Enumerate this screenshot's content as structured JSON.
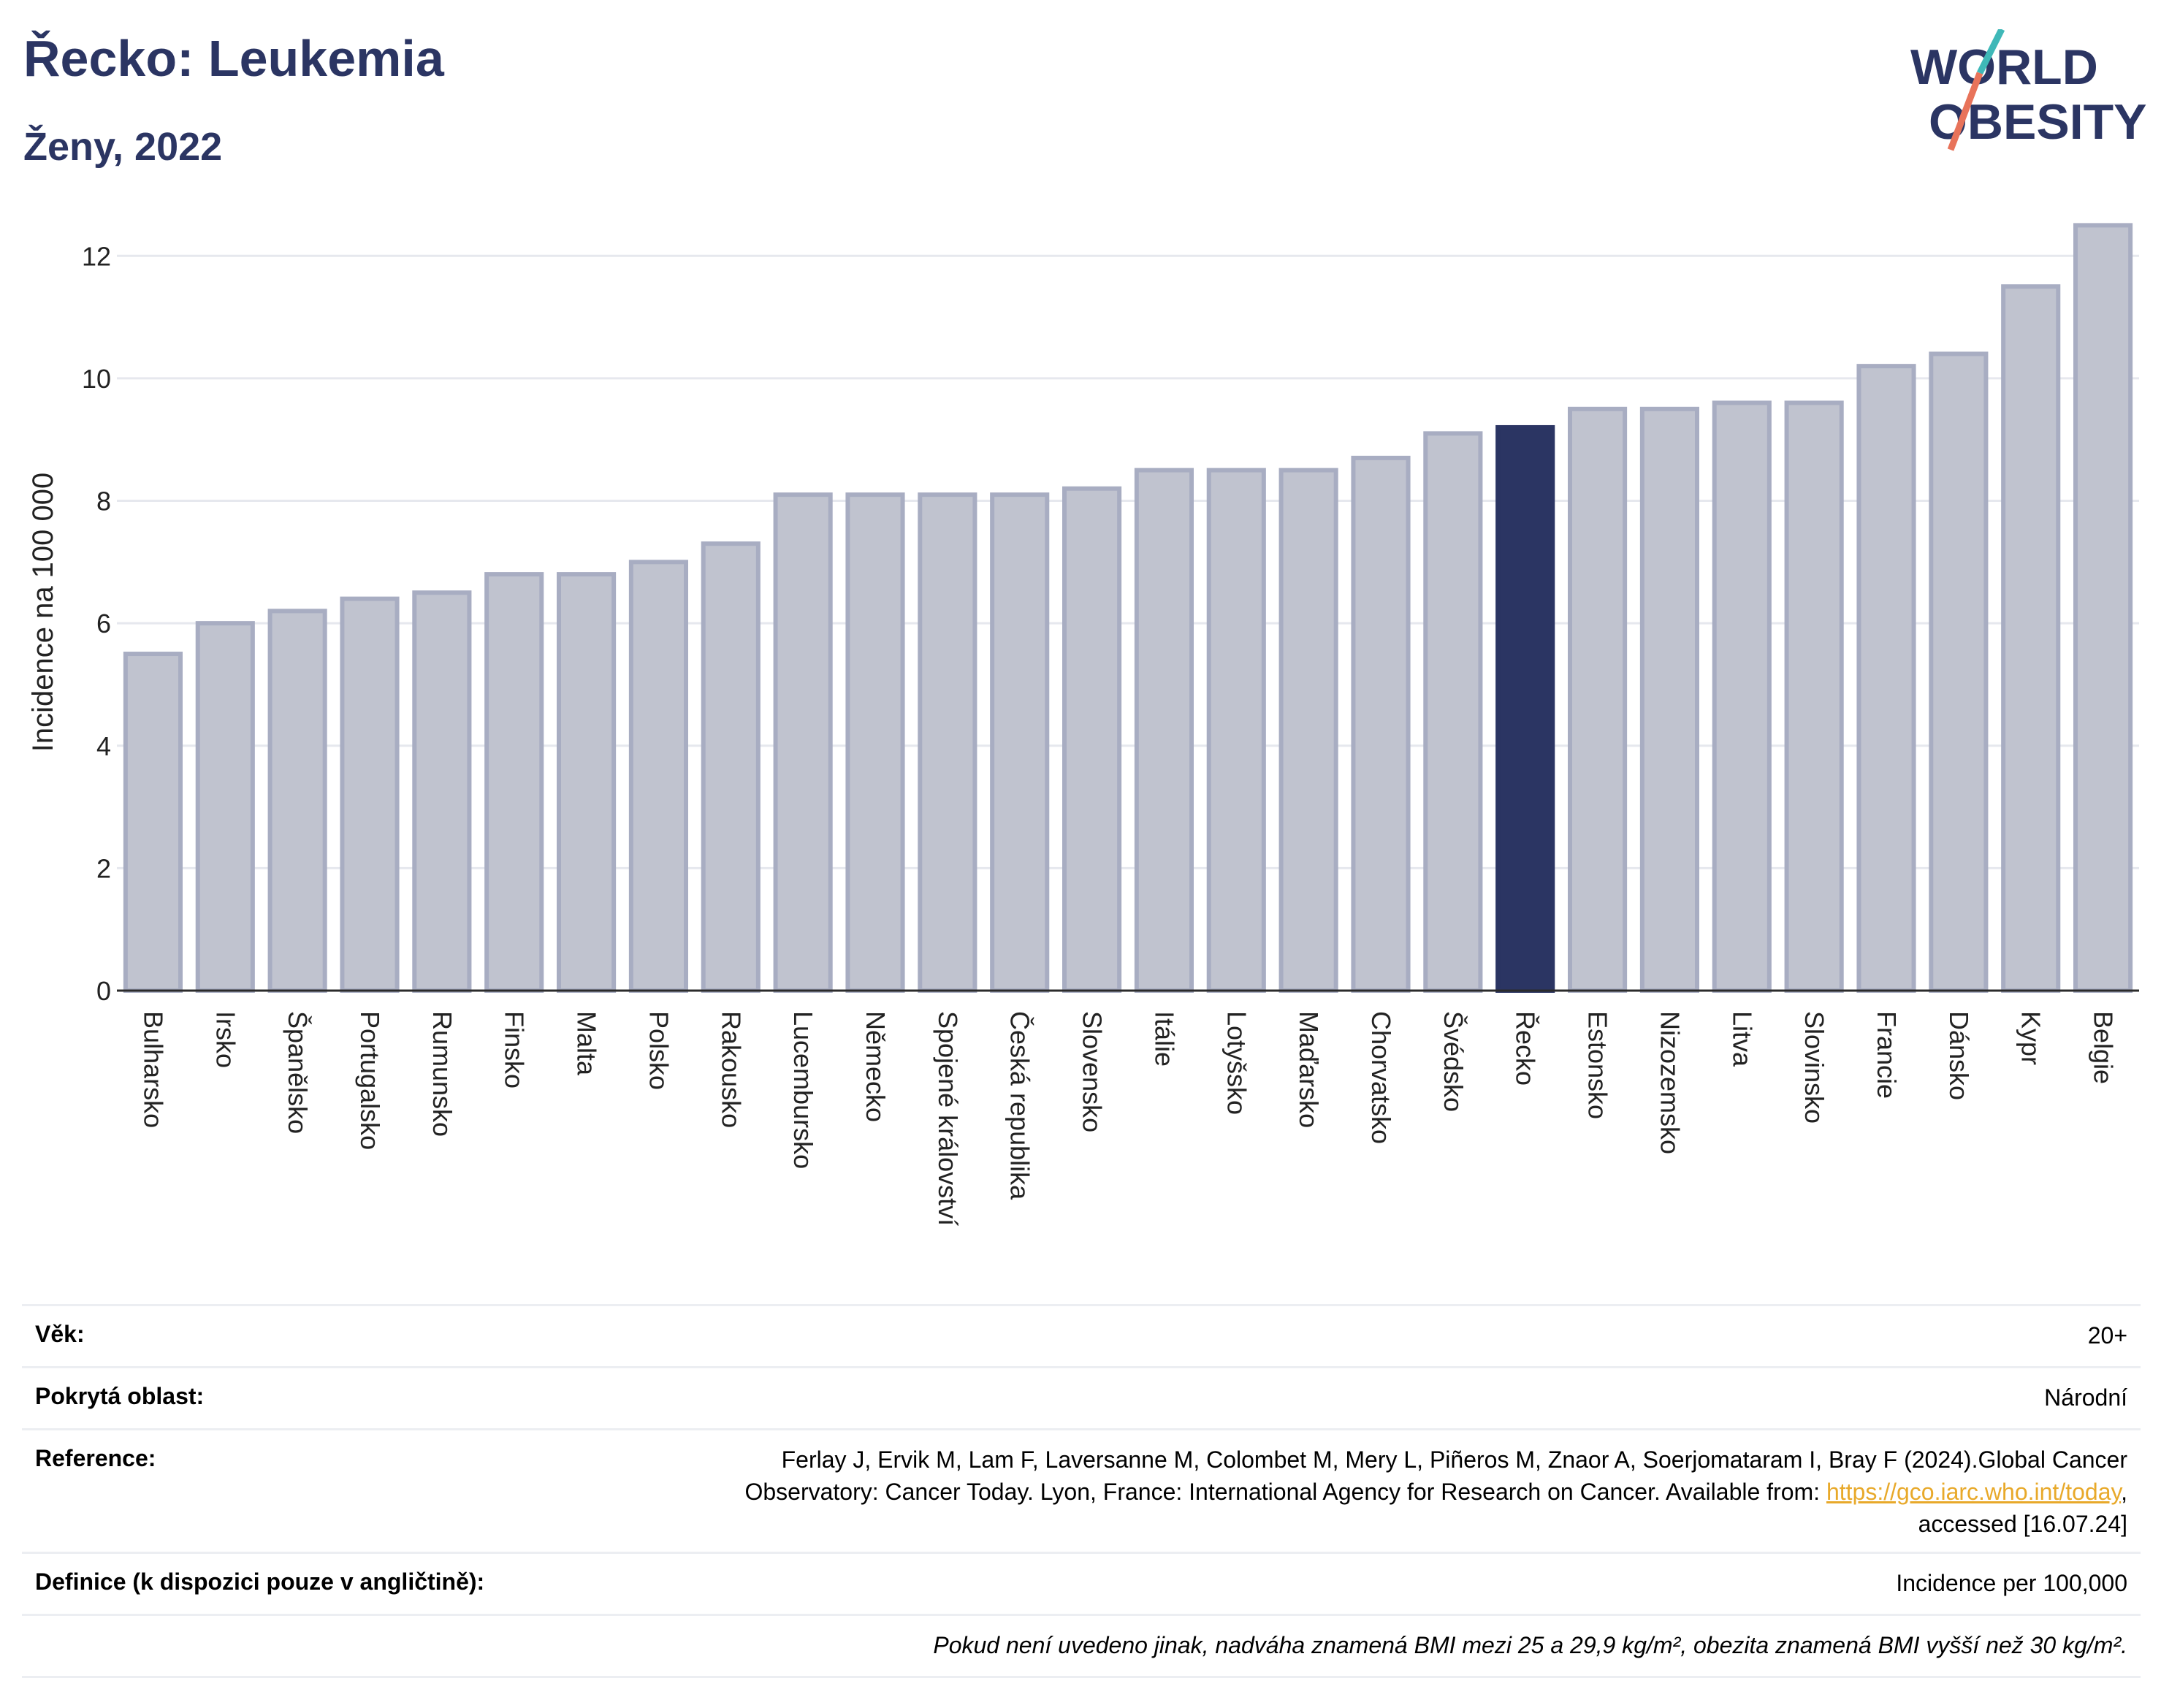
{
  "title": "Řecko: Leukemia",
  "subtitle": "Ženy, 2022",
  "logo": {
    "line1": "WORLD",
    "line2": "OBESITY"
  },
  "colors": {
    "bar": "#c0c3cf",
    "bar_border": "#a8adc2",
    "highlight": "#2b3563",
    "grid": "#e6e8ee",
    "axis": "#2b2b2b",
    "title": "#2b3563",
    "link": "#e8a92a",
    "logo_slash_top": "#3fb8b8",
    "logo_slash_bottom": "#e8735a"
  },
  "chart_data": {
    "type": "bar",
    "title": "Řecko: Leukemia",
    "subtitle": "Ženy, 2022",
    "xlabel": "",
    "ylabel": "Incidence na 100 000",
    "ylim": [
      0,
      12.6
    ],
    "yticks": [
      0,
      2,
      4,
      6,
      8,
      10,
      12
    ],
    "grid": true,
    "highlight": "Řecko",
    "categories": [
      "Bulharsko",
      "Irsko",
      "Španělsko",
      "Portugalsko",
      "Rumunsko",
      "Finsko",
      "Malta",
      "Polsko",
      "Rakousko",
      "Lucembursko",
      "Německo",
      "Spojené království",
      "Česká republika",
      "Slovensko",
      "Itálie",
      "Lotyšsko",
      "Maďarsko",
      "Chorvatsko",
      "Švédsko",
      "Řecko",
      "Estonsko",
      "Nizozemsko",
      "Litva",
      "Slovinsko",
      "Francie",
      "Dánsko",
      "Kypr",
      "Belgie"
    ],
    "values": [
      5.5,
      6.0,
      6.2,
      6.4,
      6.5,
      6.8,
      6.8,
      7.0,
      7.3,
      8.1,
      8.1,
      8.1,
      8.1,
      8.2,
      8.5,
      8.5,
      8.5,
      8.7,
      9.1,
      9.2,
      9.5,
      9.5,
      9.6,
      9.6,
      10.2,
      10.4,
      11.5,
      12.5
    ]
  },
  "info": {
    "age_label": "Věk:",
    "age_value": "20+",
    "area_label": "Pokrytá oblast:",
    "area_value": "Národní",
    "ref_label": "Reference:",
    "ref_line1": "Ferlay J, Ervik M, Lam F, Laversanne M, Colombet M, Mery L, Piñeros M, Znaor A, Soerjomataram I, Bray F (2024).Global Cancer",
    "ref_line2_pre": "Observatory: Cancer Today. Lyon, France: International Agency for Research on Cancer. Available from: ",
    "ref_link": "https://gco.iarc.who.int/today",
    "ref_line2_post": ",",
    "ref_line3": "accessed [16.07.24]",
    "def_label": "Definice (k dispozici pouze v angličtině):",
    "def_value": "Incidence per 100,000",
    "note": "Pokud není uvedeno jinak, nadváha znamená BMI mezi 25 a 29,9 kg/m², obezita znamená BMI vyšší než 30 kg/m²."
  }
}
